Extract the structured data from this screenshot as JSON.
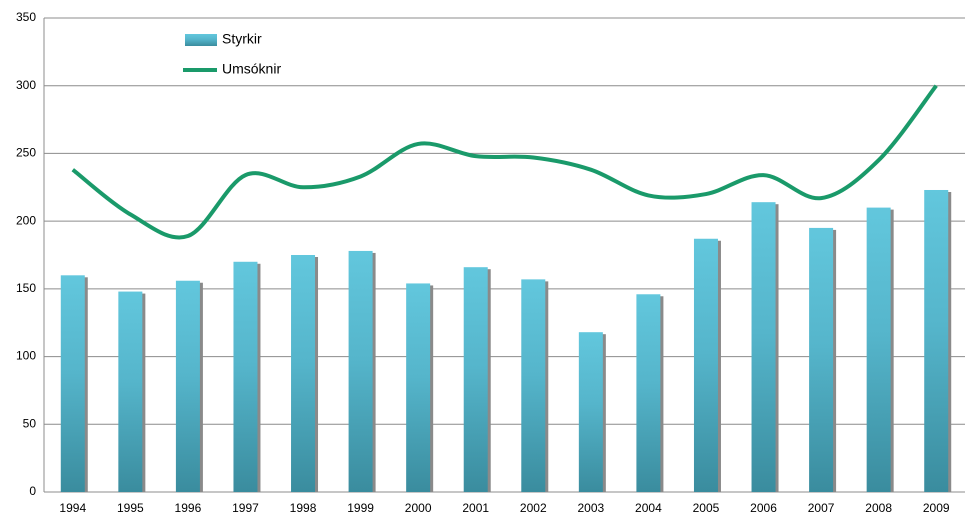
{
  "chart_data": {
    "type": "combo",
    "categories": [
      "1994",
      "1995",
      "1996",
      "1997",
      "1998",
      "1999",
      "2000",
      "2001",
      "2002",
      "2003",
      "2004",
      "2005",
      "2006",
      "2007",
      "2008",
      "2009"
    ],
    "series": [
      {
        "name": "Styrkir",
        "type": "bar",
        "color": "#5cc3da",
        "values": [
          160,
          148,
          156,
          170,
          175,
          178,
          154,
          166,
          157,
          118,
          146,
          187,
          214,
          195,
          210,
          223
        ]
      },
      {
        "name": "Umsóknir",
        "type": "line",
        "color": "#1a9a6a",
        "values": [
          238,
          205,
          189,
          234,
          225,
          233,
          257,
          248,
          247,
          238,
          219,
          220,
          234,
          217,
          245,
          300
        ]
      }
    ],
    "ylim": [
      0,
      350
    ],
    "yticks": [
      0,
      50,
      100,
      150,
      200,
      250,
      300,
      350
    ],
    "grid": true
  }
}
